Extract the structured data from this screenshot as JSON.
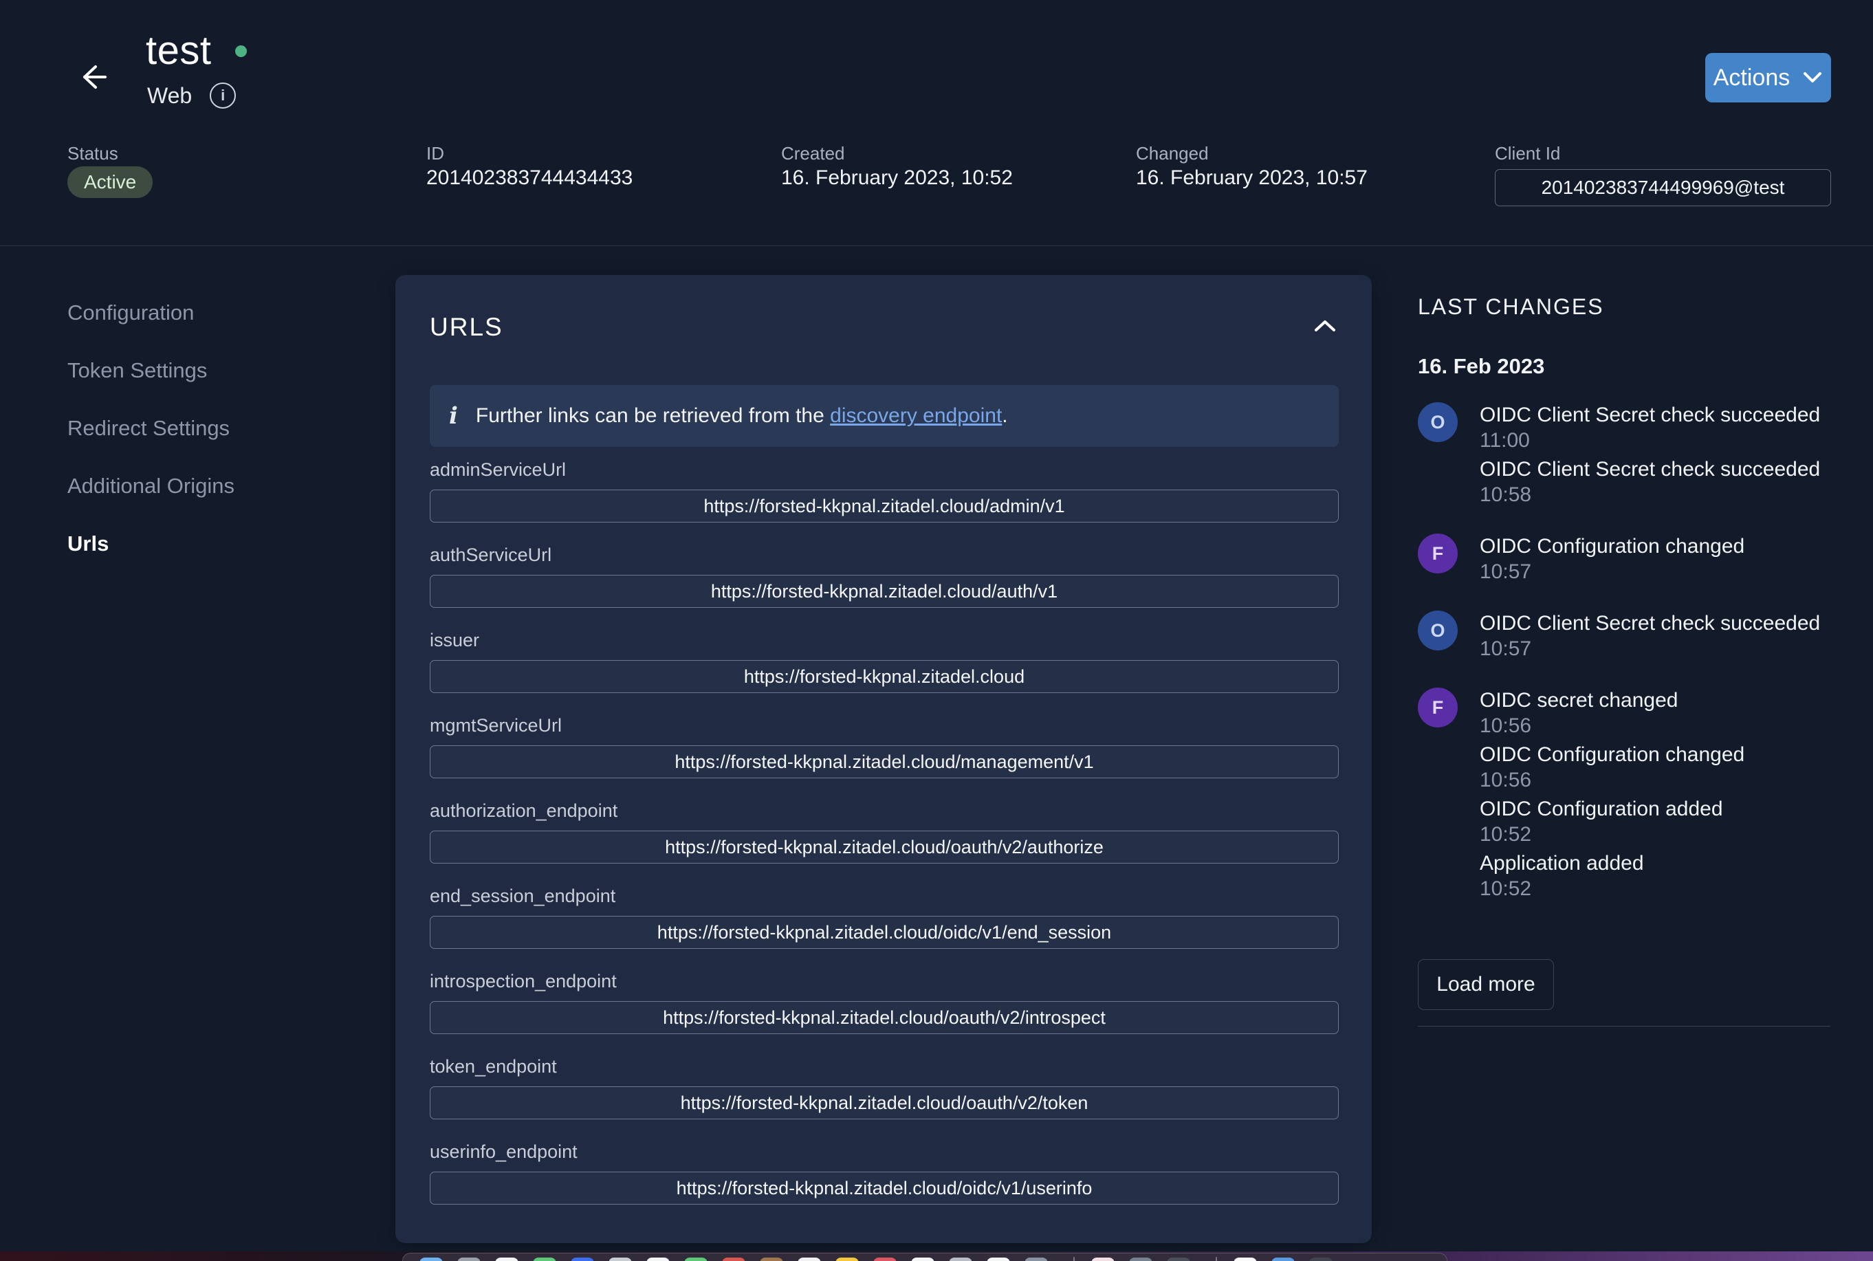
{
  "header": {
    "title": "test",
    "subtitle": "Web",
    "actions_label": "Actions",
    "status_dot_color": "#4db385",
    "accent_color": "#4385c8"
  },
  "meta": {
    "status_label": "Status",
    "status_value": "Active",
    "status_bg": "#3d4b41",
    "status_fg": "#d8efd8",
    "id_label": "ID",
    "id_value": "201402383744434433",
    "created_label": "Created",
    "created_value": "16. February 2023, 10:52",
    "changed_label": "Changed",
    "changed_value": "16. February 2023, 10:57",
    "client_id_label": "Client Id",
    "client_id_value": "201402383744499969@test"
  },
  "sidebar": {
    "items": [
      {
        "label": "Configuration",
        "active": false
      },
      {
        "label": "Token Settings",
        "active": false
      },
      {
        "label": "Redirect Settings",
        "active": false
      },
      {
        "label": "Additional Origins",
        "active": false
      },
      {
        "label": "Urls",
        "active": true
      }
    ]
  },
  "urls_card": {
    "title": "URLS",
    "collapse_icon": "chevron-up",
    "info_text_before_link": "Further links can be retrieved from the ",
    "info_link_text": "discovery endpoint",
    "info_text_after_link": ".",
    "fields": [
      {
        "label": "adminServiceUrl",
        "value": "https://forsted-kkpnal.zitadel.cloud/admin/v1"
      },
      {
        "label": "authServiceUrl",
        "value": "https://forsted-kkpnal.zitadel.cloud/auth/v1"
      },
      {
        "label": "issuer",
        "value": "https://forsted-kkpnal.zitadel.cloud"
      },
      {
        "label": "mgmtServiceUrl",
        "value": "https://forsted-kkpnal.zitadel.cloud/management/v1"
      },
      {
        "label": "authorization_endpoint",
        "value": "https://forsted-kkpnal.zitadel.cloud/oauth/v2/authorize"
      },
      {
        "label": "end_session_endpoint",
        "value": "https://forsted-kkpnal.zitadel.cloud/oidc/v1/end_session"
      },
      {
        "label": "introspection_endpoint",
        "value": "https://forsted-kkpnal.zitadel.cloud/oauth/v2/introspect"
      },
      {
        "label": "token_endpoint",
        "value": "https://forsted-kkpnal.zitadel.cloud/oauth/v2/token"
      },
      {
        "label": "userinfo_endpoint",
        "value": "https://forsted-kkpnal.zitadel.cloud/oidc/v1/userinfo"
      }
    ]
  },
  "changes_panel": {
    "title": "LAST CHANGES",
    "date_header": "16. Feb 2023",
    "events": [
      {
        "avatar": "O",
        "avatar_color": "#2c4d96",
        "title": "OIDC Client Secret check succeeded",
        "time": "11:00"
      },
      {
        "avatar": "",
        "avatar_color": "",
        "title": "OIDC Client Secret check succeeded",
        "time": "10:58"
      },
      {
        "avatar": "F",
        "avatar_color": "#5a2ea6",
        "title": "OIDC Configuration changed",
        "time": "10:57"
      },
      {
        "avatar": "O",
        "avatar_color": "#2c4d96",
        "title": "OIDC Client Secret check succeeded",
        "time": "10:57"
      },
      {
        "avatar": "F",
        "avatar_color": "#5a2ea6",
        "title": "OIDC secret changed",
        "time": "10:56"
      },
      {
        "avatar": "",
        "avatar_color": "",
        "title": "OIDC Configuration changed",
        "time": "10:56"
      },
      {
        "avatar": "",
        "avatar_color": "",
        "title": "OIDC Configuration added",
        "time": "10:52"
      },
      {
        "avatar": "",
        "avatar_color": "",
        "title": "Application added",
        "time": "10:52"
      }
    ],
    "load_more_label": "Load more"
  },
  "dock": {
    "icons": [
      "#6fb1ec",
      "#9aa0a8",
      "#f4f5f7",
      "#5ec878",
      "#3d6ef0",
      "#c8cdd4",
      "#f4f5f7",
      "#5ec878",
      "#d95750",
      "#a07850",
      "#f2f2f4",
      "#f3c93f",
      "#e05667",
      "#f4f5f7",
      "#b9bec6",
      "#f4f5f7",
      "#8a93a2",
      "sep",
      "#f2dfe4",
      "#76828f",
      "#4a4f5a",
      "sep",
      "#fafafa",
      "#5a9ae0",
      "#3f444e"
    ]
  }
}
